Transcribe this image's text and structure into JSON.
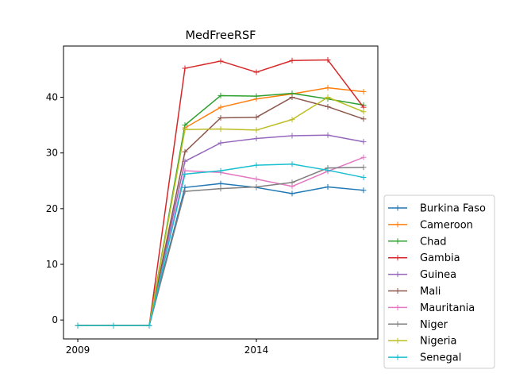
{
  "chart_data": {
    "type": "line",
    "title": "MedFreeRSF",
    "xlabel": "",
    "ylabel": "",
    "x": [
      2009,
      2010,
      2011,
      2012,
      2013,
      2014,
      2015,
      2016,
      2017
    ],
    "xticks": [
      2009,
      2014
    ],
    "xlim": [
      2008.6,
      2017.4
    ],
    "yticks": [
      0,
      10,
      20,
      30,
      40
    ],
    "ylim": [
      -3.4,
      49.2
    ],
    "legend_position": "right-lower-outside",
    "series": [
      {
        "name": "Burkina Faso",
        "color": "#1f77b4",
        "values": [
          -1.0,
          -1.0,
          -1.0,
          23.8,
          24.5,
          23.8,
          22.7,
          23.9,
          23.3
        ]
      },
      {
        "name": "Cameroon",
        "color": "#ff7f0e",
        "values": [
          -1.0,
          -1.0,
          -1.0,
          34.5,
          38.2,
          39.7,
          40.6,
          41.7,
          41.0
        ]
      },
      {
        "name": "Chad",
        "color": "#2ca02c",
        "values": [
          -1.0,
          -1.0,
          -1.0,
          35.0,
          40.3,
          40.2,
          40.7,
          39.7,
          38.6
        ]
      },
      {
        "name": "Gambia",
        "color": "#d62728",
        "values": [
          -1.0,
          -1.0,
          -1.0,
          45.2,
          46.5,
          44.5,
          46.6,
          46.7,
          38.2
        ]
      },
      {
        "name": "Guinea",
        "color": "#9467bd",
        "values": [
          -1.0,
          -1.0,
          -1.0,
          28.5,
          31.8,
          32.6,
          33.1,
          33.2,
          32.0
        ]
      },
      {
        "name": "Mali",
        "color": "#8c564b",
        "values": [
          -1.0,
          -1.0,
          -1.0,
          30.2,
          36.3,
          36.4,
          40.0,
          38.3,
          36.1
        ]
      },
      {
        "name": "Mauritania",
        "color": "#e377c2",
        "values": [
          -1.0,
          -1.0,
          -1.0,
          26.8,
          26.5,
          25.3,
          24.0,
          26.7,
          29.2
        ]
      },
      {
        "name": "Niger",
        "color": "#7f7f7f",
        "values": [
          -1.0,
          -1.0,
          -1.0,
          23.1,
          23.6,
          23.9,
          24.7,
          27.3,
          27.4
        ]
      },
      {
        "name": "Nigeria",
        "color": "#bcbd22",
        "values": [
          -1.0,
          -1.0,
          -1.0,
          34.2,
          34.3,
          34.1,
          36.0,
          40.0,
          37.4
        ]
      },
      {
        "name": "Senegal",
        "color": "#17becf",
        "values": [
          -1.0,
          -1.0,
          -1.0,
          26.2,
          26.8,
          27.8,
          28.0,
          26.9,
          25.6
        ]
      }
    ]
  }
}
